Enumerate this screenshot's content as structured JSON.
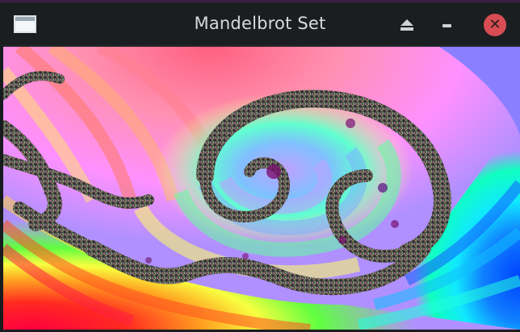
{
  "window": {
    "title": "Mandelbrot Set"
  },
  "titlebar": {
    "app_icon": "window-app-icon",
    "buttons": [
      {
        "name": "eject",
        "icon": "eject-icon"
      },
      {
        "name": "minimize",
        "icon": "minimize-icon"
      },
      {
        "name": "close",
        "icon": "close-icon",
        "color": "#d84d53"
      }
    ]
  },
  "fractal": {
    "type": "Mandelbrot spiral zoom",
    "palette": [
      "#ff0040",
      "#ff3a30",
      "#ff7a50",
      "#ffb070",
      "#fff080",
      "#a0ff60",
      "#30f090",
      "#10e8ff",
      "#2080ff",
      "#2040e0",
      "#a080ff",
      "#ff90ff",
      "#ffb0d0",
      "#ff8080"
    ]
  }
}
